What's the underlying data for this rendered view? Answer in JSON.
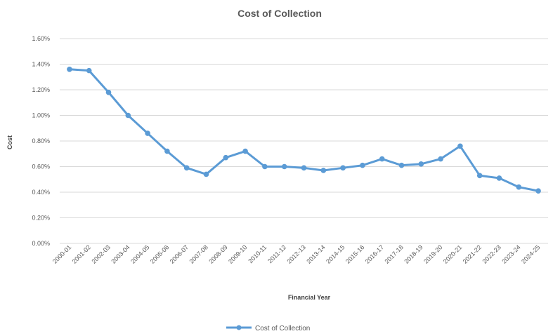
{
  "chart_data": {
    "type": "line",
    "title": "Cost of Collection",
    "xlabel": "Financial Year",
    "ylabel": "Cost",
    "ylim": [
      0,
      1.6
    ],
    "y_ticks": [
      "0.00%",
      "0.20%",
      "0.40%",
      "0.60%",
      "0.80%",
      "1.00%",
      "1.20%",
      "1.40%",
      "1.60%"
    ],
    "categories": [
      "2000-01",
      "2001-02",
      "2002-03",
      "2003-04",
      "2004-05",
      "2005-06",
      "2006-07",
      "2007-08",
      "2008-09",
      "2009-10",
      "2010-11",
      "2011-12",
      "2012-13",
      "2013-14",
      "2014-15",
      "2015-16",
      "2016-17",
      "2017-18",
      "2018-19",
      "2019-20",
      "2020-21",
      "2021-22",
      "2022-23",
      "2023-24",
      "2024-25"
    ],
    "series": [
      {
        "name": "Cost of Collection",
        "color": "#5b9bd5",
        "values": [
          1.36,
          1.35,
          1.18,
          1.0,
          0.86,
          0.72,
          0.59,
          0.54,
          0.67,
          0.72,
          0.6,
          0.6,
          0.59,
          0.57,
          0.59,
          0.61,
          0.66,
          0.61,
          0.62,
          0.66,
          0.76,
          0.53,
          0.51,
          0.44,
          0.41
        ]
      }
    ],
    "grid": true,
    "legend_position": "bottom"
  }
}
